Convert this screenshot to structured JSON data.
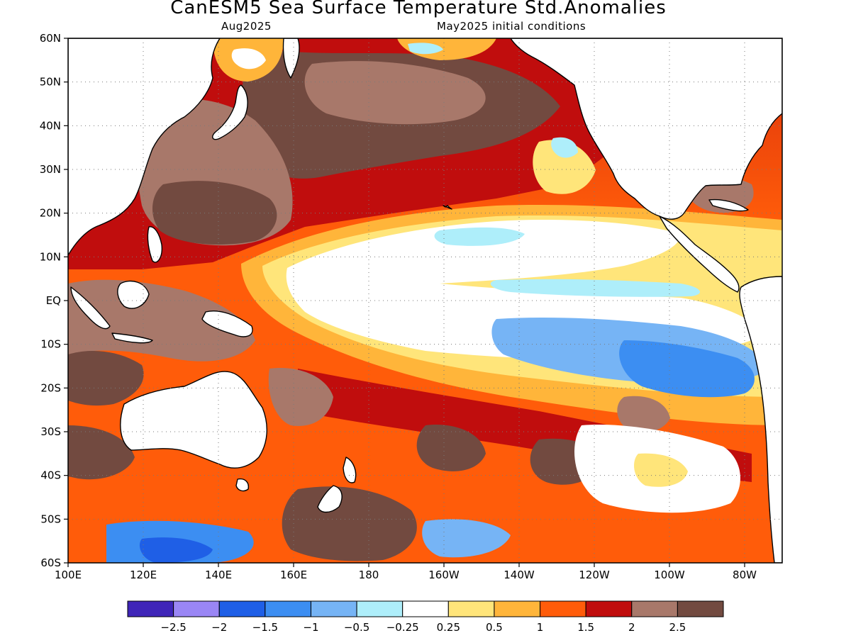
{
  "title": "CanESM5 Sea Surface Temperature Std.Anomalies",
  "subtitle_left": "Aug2025",
  "subtitle_right": "May2025 initial conditions",
  "map": {
    "lon_min": 100,
    "lon_max": 290,
    "lat_min": -60,
    "lat_max": 60,
    "lat_ticks": [
      {
        "lat": 60,
        "label": "60N"
      },
      {
        "lat": 50,
        "label": "50N"
      },
      {
        "lat": 40,
        "label": "40N"
      },
      {
        "lat": 30,
        "label": "30N"
      },
      {
        "lat": 20,
        "label": "20N"
      },
      {
        "lat": 10,
        "label": "10N"
      },
      {
        "lat": 0,
        "label": "EQ"
      },
      {
        "lat": -10,
        "label": "10S"
      },
      {
        "lat": -20,
        "label": "20S"
      },
      {
        "lat": -30,
        "label": "30S"
      },
      {
        "lat": -40,
        "label": "40S"
      },
      {
        "lat": -50,
        "label": "50S"
      },
      {
        "lat": -60,
        "label": "60S"
      }
    ],
    "lon_ticks": [
      {
        "lon": 100,
        "label": "100E"
      },
      {
        "lon": 120,
        "label": "120E"
      },
      {
        "lon": 140,
        "label": "140E"
      },
      {
        "lon": 160,
        "label": "160E"
      },
      {
        "lon": 180,
        "label": "180"
      },
      {
        "lon": 200,
        "label": "160W"
      },
      {
        "lon": 220,
        "label": "140W"
      },
      {
        "lon": 240,
        "label": "120W"
      },
      {
        "lon": 260,
        "label": "100W"
      },
      {
        "lon": 280,
        "label": "80W"
      }
    ],
    "land_color": "#ffffff",
    "grid": "dotted"
  },
  "colorbar": {
    "colors": [
      "#3f25b8",
      "#9a86f5",
      "#1f5fe6",
      "#3c8ef2",
      "#76b4f5",
      "#aeeefa",
      "#ffffff",
      "#ffe57a",
      "#ffb53a",
      "#ff5c0a",
      "#c00d0d",
      "#a8786a",
      "#724a40"
    ],
    "labels": [
      "-2.5",
      "-2",
      "-1.5",
      "-1",
      "-0.5",
      "-0.25",
      "0.25",
      "0.5",
      "1",
      "1.5",
      "2",
      "2.5"
    ]
  }
}
